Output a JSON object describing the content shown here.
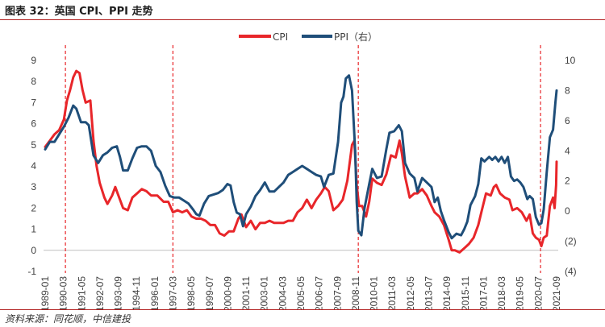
{
  "header": {
    "title": "图表 32：英国 CPI、PPI 走势"
  },
  "footer": {
    "source": "资料来源：同花顺，中信建投"
  },
  "chart_data": {
    "type": "line",
    "title": "图表 32：英国 CPI、PPI 走势",
    "y_left": {
      "range": [
        -1,
        9
      ],
      "ticks": [
        "-1",
        "0",
        "1",
        "2",
        "3",
        "4",
        "5",
        "6",
        "7",
        "8",
        "9"
      ]
    },
    "y_right": {
      "range": [
        -4,
        10
      ],
      "ticks": [
        "(4)",
        "(2)",
        "0",
        "2",
        "4",
        "6",
        "8",
        "10"
      ],
      "tick_values": [
        -4,
        -2,
        0,
        2,
        4,
        6,
        8,
        10
      ]
    },
    "x_labels": [
      "1989-01",
      "1990-03",
      "1991-05",
      "1992-07",
      "1993-09",
      "1994-11",
      "1996-01",
      "1997-03",
      "1998-05",
      "1999-07",
      "2000-09",
      "2001-11",
      "2003-01",
      "2004-03",
      "2005-05",
      "2006-07",
      "2007-09",
      "2008-11",
      "2010-01",
      "2011-03",
      "2012-05",
      "2013-07",
      "2014-09",
      "2015-11",
      "2017-01",
      "2018-03",
      "2019-05",
      "2020-07",
      "2021-09"
    ],
    "x_range": [
      1989.0,
      2021.83
    ],
    "vlines": [
      1990.3,
      1997.2,
      2009.1,
      2020.8
    ],
    "legend": [
      "CPI",
      "PPI（右）"
    ],
    "colors": {
      "CPI": "#e8262a",
      "PPI": "#1f4e79",
      "vline": "#e8262a"
    },
    "series": [
      {
        "name": "CPI",
        "axis": "left",
        "points": [
          [
            1989.0,
            4.9
          ],
          [
            1989.3,
            5.2
          ],
          [
            1989.6,
            5.5
          ],
          [
            1989.9,
            5.7
          ],
          [
            1990.2,
            6.2
          ],
          [
            1990.4,
            7.1
          ],
          [
            1990.6,
            7.6
          ],
          [
            1990.8,
            8.2
          ],
          [
            1991.0,
            8.5
          ],
          [
            1991.2,
            8.4
          ],
          [
            1991.4,
            7.6
          ],
          [
            1991.6,
            7.0
          ],
          [
            1991.9,
            7.1
          ],
          [
            1992.1,
            5.2
          ],
          [
            1992.3,
            4.0
          ],
          [
            1992.5,
            3.2
          ],
          [
            1992.8,
            2.5
          ],
          [
            1993.0,
            2.2
          ],
          [
            1993.3,
            2.6
          ],
          [
            1993.5,
            3.0
          ],
          [
            1993.8,
            2.4
          ],
          [
            1994.0,
            2.0
          ],
          [
            1994.3,
            1.9
          ],
          [
            1994.6,
            2.5
          ],
          [
            1994.9,
            2.7
          ],
          [
            1995.2,
            2.9
          ],
          [
            1995.5,
            2.8
          ],
          [
            1995.8,
            2.6
          ],
          [
            1996.2,
            2.6
          ],
          [
            1996.6,
            2.3
          ],
          [
            1996.9,
            2.3
          ],
          [
            1997.2,
            1.8
          ],
          [
            1997.5,
            1.9
          ],
          [
            1997.8,
            1.8
          ],
          [
            1998.1,
            1.9
          ],
          [
            1998.4,
            1.6
          ],
          [
            1998.7,
            1.5
          ],
          [
            1999.0,
            1.5
          ],
          [
            1999.3,
            1.4
          ],
          [
            1999.6,
            1.2
          ],
          [
            1999.9,
            1.2
          ],
          [
            2000.2,
            0.8
          ],
          [
            2000.5,
            0.7
          ],
          [
            2000.8,
            0.9
          ],
          [
            2001.1,
            0.9
          ],
          [
            2001.4,
            1.5
          ],
          [
            2001.6,
            1.7
          ],
          [
            2001.9,
            1.1
          ],
          [
            2002.2,
            1.4
          ],
          [
            2002.5,
            1.0
          ],
          [
            2002.8,
            1.3
          ],
          [
            2003.1,
            1.3
          ],
          [
            2003.4,
            1.4
          ],
          [
            2003.7,
            1.3
          ],
          [
            2004.0,
            1.3
          ],
          [
            2004.3,
            1.3
          ],
          [
            2004.6,
            1.4
          ],
          [
            2004.9,
            1.4
          ],
          [
            2005.2,
            1.8
          ],
          [
            2005.5,
            2.0
          ],
          [
            2005.8,
            2.4
          ],
          [
            2006.1,
            2.0
          ],
          [
            2006.4,
            2.4
          ],
          [
            2006.7,
            2.7
          ],
          [
            2006.95,
            3.0
          ],
          [
            2007.2,
            2.8
          ],
          [
            2007.5,
            1.9
          ],
          [
            2007.8,
            2.1
          ],
          [
            2008.1,
            2.4
          ],
          [
            2008.4,
            3.3
          ],
          [
            2008.7,
            5.0
          ],
          [
            2008.85,
            5.2
          ],
          [
            2009.0,
            3.1
          ],
          [
            2009.15,
            2.1
          ],
          [
            2009.35,
            2.1
          ],
          [
            2009.6,
            1.6
          ],
          [
            2009.8,
            2.3
          ],
          [
            2010.0,
            3.4
          ],
          [
            2010.3,
            3.2
          ],
          [
            2010.6,
            3.1
          ],
          [
            2010.9,
            3.6
          ],
          [
            2011.2,
            4.5
          ],
          [
            2011.5,
            4.4
          ],
          [
            2011.75,
            5.2
          ],
          [
            2011.9,
            4.6
          ],
          [
            2012.1,
            3.5
          ],
          [
            2012.4,
            2.5
          ],
          [
            2012.7,
            2.7
          ],
          [
            2012.9,
            2.7
          ],
          [
            2013.2,
            2.9
          ],
          [
            2013.5,
            2.6
          ],
          [
            2013.8,
            2.1
          ],
          [
            2014.0,
            1.8
          ],
          [
            2014.3,
            1.6
          ],
          [
            2014.6,
            1.2
          ],
          [
            2014.9,
            0.5
          ],
          [
            2015.1,
            0.0
          ],
          [
            2015.3,
            0.0
          ],
          [
            2015.6,
            -0.1
          ],
          [
            2015.9,
            0.1
          ],
          [
            2016.2,
            0.3
          ],
          [
            2016.5,
            0.6
          ],
          [
            2016.8,
            1.2
          ],
          [
            2017.0,
            1.8
          ],
          [
            2017.3,
            2.7
          ],
          [
            2017.6,
            2.6
          ],
          [
            2017.8,
            3.0
          ],
          [
            2017.95,
            3.1
          ],
          [
            2018.2,
            2.7
          ],
          [
            2018.5,
            2.5
          ],
          [
            2018.8,
            2.4
          ],
          [
            2019.0,
            1.9
          ],
          [
            2019.3,
            2.0
          ],
          [
            2019.6,
            1.8
          ],
          [
            2019.9,
            1.4
          ],
          [
            2020.1,
            1.7
          ],
          [
            2020.3,
            0.8
          ],
          [
            2020.5,
            0.6
          ],
          [
            2020.7,
            0.5
          ],
          [
            2020.85,
            0.2
          ],
          [
            2021.0,
            0.6
          ],
          [
            2021.2,
            0.7
          ],
          [
            2021.4,
            2.1
          ],
          [
            2021.6,
            2.5
          ],
          [
            2021.7,
            2.0
          ],
          [
            2021.8,
            3.1
          ],
          [
            2021.83,
            4.2
          ]
        ]
      },
      {
        "name": "PPI（右）",
        "axis": "right",
        "points": [
          [
            1989.0,
            4.1
          ],
          [
            1989.3,
            4.6
          ],
          [
            1989.6,
            4.6
          ],
          [
            1989.9,
            5.1
          ],
          [
            1990.2,
            5.6
          ],
          [
            1990.5,
            6.2
          ],
          [
            1990.8,
            7.0
          ],
          [
            1991.0,
            6.8
          ],
          [
            1991.3,
            5.9
          ],
          [
            1991.6,
            5.9
          ],
          [
            1991.8,
            5.7
          ],
          [
            1992.1,
            3.7
          ],
          [
            1992.4,
            3.2
          ],
          [
            1992.7,
            3.7
          ],
          [
            1993.0,
            3.9
          ],
          [
            1993.3,
            4.2
          ],
          [
            1993.6,
            4.3
          ],
          [
            1993.8,
            3.6
          ],
          [
            1994.0,
            2.7
          ],
          [
            1994.3,
            2.7
          ],
          [
            1994.6,
            3.5
          ],
          [
            1994.9,
            4.2
          ],
          [
            1995.2,
            4.3
          ],
          [
            1995.5,
            4.3
          ],
          [
            1995.8,
            4.0
          ],
          [
            1996.1,
            3.0
          ],
          [
            1996.4,
            2.6
          ],
          [
            1996.7,
            1.7
          ],
          [
            1997.0,
            1.0
          ],
          [
            1997.3,
            0.9
          ],
          [
            1997.6,
            0.9
          ],
          [
            1997.9,
            0.7
          ],
          [
            1998.2,
            0.5
          ],
          [
            1998.5,
            0.1
          ],
          [
            1998.7,
            -0.2
          ],
          [
            1998.9,
            -0.3
          ],
          [
            1999.2,
            0.5
          ],
          [
            1999.5,
            1.0
          ],
          [
            1999.8,
            1.1
          ],
          [
            2000.1,
            1.2
          ],
          [
            2000.4,
            1.4
          ],
          [
            2000.7,
            1.8
          ],
          [
            2000.9,
            1.7
          ],
          [
            2001.1,
            0.6
          ],
          [
            2001.3,
            -0.1
          ],
          [
            2001.5,
            -0.2
          ],
          [
            2001.7,
            -1.0
          ],
          [
            2001.9,
            -0.2
          ],
          [
            2002.2,
            0.3
          ],
          [
            2002.5,
            1.0
          ],
          [
            2002.8,
            1.4
          ],
          [
            2003.1,
            1.9
          ],
          [
            2003.4,
            1.3
          ],
          [
            2003.7,
            1.3
          ],
          [
            2004.0,
            1.6
          ],
          [
            2004.3,
            1.9
          ],
          [
            2004.6,
            2.4
          ],
          [
            2004.9,
            2.6
          ],
          [
            2005.2,
            2.8
          ],
          [
            2005.5,
            3.0
          ],
          [
            2005.8,
            2.8
          ],
          [
            2006.1,
            2.6
          ],
          [
            2006.4,
            2.4
          ],
          [
            2006.7,
            2.3
          ],
          [
            2006.9,
            1.6
          ],
          [
            2007.2,
            2.4
          ],
          [
            2007.5,
            2.5
          ],
          [
            2007.8,
            4.6
          ],
          [
            2008.0,
            7.2
          ],
          [
            2008.15,
            7.6
          ],
          [
            2008.3,
            8.8
          ],
          [
            2008.5,
            9.0
          ],
          [
            2008.7,
            8.0
          ],
          [
            2008.9,
            4.0
          ],
          [
            2009.0,
            0.6
          ],
          [
            2009.1,
            -1.3
          ],
          [
            2009.3,
            -1.6
          ],
          [
            2009.5,
            0.2
          ],
          [
            2009.8,
            1.8
          ],
          [
            2010.0,
            2.8
          ],
          [
            2010.3,
            2.2
          ],
          [
            2010.6,
            2.3
          ],
          [
            2010.9,
            4.1
          ],
          [
            2011.1,
            5.2
          ],
          [
            2011.4,
            5.3
          ],
          [
            2011.7,
            5.7
          ],
          [
            2011.9,
            5.3
          ],
          [
            2012.1,
            3.2
          ],
          [
            2012.4,
            2.5
          ],
          [
            2012.7,
            2.2
          ],
          [
            2012.9,
            1.3
          ],
          [
            2013.2,
            2.2
          ],
          [
            2013.5,
            1.9
          ],
          [
            2013.8,
            1.6
          ],
          [
            2014.0,
            0.6
          ],
          [
            2014.2,
            0.9
          ],
          [
            2014.4,
            0.0
          ],
          [
            2014.6,
            -0.6
          ],
          [
            2014.9,
            -1.4
          ],
          [
            2015.1,
            -1.8
          ],
          [
            2015.4,
            -1.5
          ],
          [
            2015.7,
            -1.6
          ],
          [
            2015.9,
            -1.2
          ],
          [
            2016.1,
            -0.7
          ],
          [
            2016.3,
            0.4
          ],
          [
            2016.6,
            1.0
          ],
          [
            2016.8,
            1.8
          ],
          [
            2017.0,
            3.5
          ],
          [
            2017.2,
            3.3
          ],
          [
            2017.5,
            3.6
          ],
          [
            2017.7,
            3.4
          ],
          [
            2017.9,
            3.6
          ],
          [
            2018.1,
            3.3
          ],
          [
            2018.3,
            3.6
          ],
          [
            2018.5,
            3.2
          ],
          [
            2018.7,
            3.6
          ],
          [
            2018.9,
            2.3
          ],
          [
            2019.1,
            2.0
          ],
          [
            2019.3,
            2.1
          ],
          [
            2019.5,
            1.9
          ],
          [
            2019.7,
            1.6
          ],
          [
            2019.95,
            0.8
          ],
          [
            2020.1,
            1.0
          ],
          [
            2020.3,
            0.8
          ],
          [
            2020.5,
            -0.4
          ],
          [
            2020.7,
            -0.9
          ],
          [
            2020.85,
            -0.8
          ],
          [
            2021.0,
            0.1
          ],
          [
            2021.2,
            2.6
          ],
          [
            2021.4,
            4.9
          ],
          [
            2021.6,
            5.4
          ],
          [
            2021.75,
            7.2
          ],
          [
            2021.83,
            8.0
          ]
        ]
      }
    ]
  }
}
